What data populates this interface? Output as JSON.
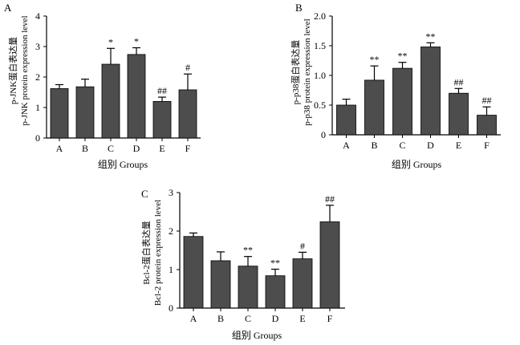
{
  "figure": {
    "background": "#ffffff",
    "bar_color": "#4d4d4d"
  },
  "chart_data": [
    {
      "panel": "A",
      "type": "bar",
      "categories": [
        "A",
        "B",
        "C",
        "D",
        "E",
        "F"
      ],
      "values": [
        1.62,
        1.68,
        2.42,
        2.74,
        1.2,
        1.58
      ],
      "errors": [
        0.13,
        0.25,
        0.52,
        0.22,
        0.14,
        0.52
      ],
      "annotations": [
        "",
        "",
        "*",
        "*",
        "##",
        "#"
      ],
      "ylabel_line1": "p-JNK蛋白表达量",
      "ylabel_line2": "p-JNK protein expression level",
      "xlabel": "组别  Groups",
      "ylim": [
        0,
        4
      ],
      "yticks": [
        "0",
        "1",
        "2",
        "3",
        "4"
      ],
      "ytick_values": [
        0,
        1,
        2,
        3,
        4
      ]
    },
    {
      "panel": "B",
      "type": "bar",
      "categories": [
        "A",
        "B",
        "C",
        "D",
        "E",
        "F"
      ],
      "values": [
        0.5,
        0.92,
        1.12,
        1.48,
        0.7,
        0.33
      ],
      "errors": [
        0.1,
        0.24,
        0.1,
        0.07,
        0.08,
        0.14
      ],
      "annotations": [
        "",
        "**",
        "**",
        "**",
        "##",
        "##"
      ],
      "ylabel_line1": "p-p38蛋白表达量",
      "ylabel_line2": "p-p38 protein expression level",
      "xlabel": "组别  Groups",
      "ylim": [
        0,
        2.0
      ],
      "yticks": [
        "0",
        "0.5",
        "1.0",
        "1.5",
        "2.0"
      ],
      "ytick_values": [
        0,
        0.5,
        1.0,
        1.5,
        2.0
      ]
    },
    {
      "panel": "C",
      "type": "bar",
      "categories": [
        "A",
        "B",
        "C",
        "D",
        "E",
        "F"
      ],
      "values": [
        1.86,
        1.23,
        1.09,
        0.84,
        1.28,
        2.24
      ],
      "errors": [
        0.09,
        0.23,
        0.25,
        0.17,
        0.17,
        0.43
      ],
      "annotations": [
        "",
        "",
        "**",
        "**",
        "#",
        "##"
      ],
      "ylabel_line1": "Bcl-2蛋白表达量",
      "ylabel_line2": "Bcl-2 protein expression level",
      "xlabel": "组别  Groups",
      "ylim": [
        0,
        3
      ],
      "yticks": [
        "0",
        "1",
        "2",
        "3"
      ],
      "ytick_values": [
        0,
        1,
        2,
        3
      ]
    }
  ]
}
